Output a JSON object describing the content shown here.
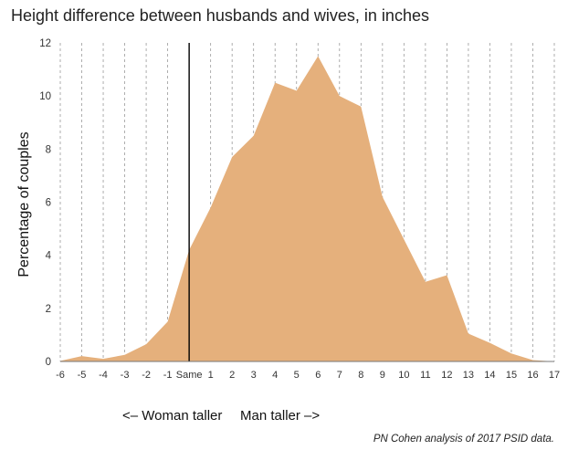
{
  "chart_data": {
    "type": "area",
    "title": "Height difference between husbands and wives, in inches",
    "xlabel": "",
    "ylabel": "Percentage of couples",
    "x": [
      -6,
      -5,
      -4,
      -3,
      -2,
      -1,
      0,
      1,
      2,
      3,
      4,
      5,
      6,
      7,
      8,
      9,
      10,
      11,
      12,
      13,
      14,
      15,
      16,
      17
    ],
    "x_tick_labels": [
      "-6",
      "-5",
      "-4",
      "-3",
      "-2",
      "-1",
      "Same",
      "1",
      "2",
      "3",
      "4",
      "5",
      "6",
      "7",
      "8",
      "9",
      "10",
      "11",
      "12",
      "13",
      "14",
      "15",
      "16",
      "17"
    ],
    "values": [
      0.02,
      0.2,
      0.1,
      0.25,
      0.65,
      1.5,
      4.2,
      5.8,
      7.7,
      8.5,
      10.5,
      10.2,
      11.5,
      10.0,
      9.6,
      6.2,
      4.6,
      3.0,
      3.25,
      1.05,
      0.7,
      0.3,
      0.05,
      0.0
    ],
    "ylim": [
      0,
      12
    ],
    "y_ticks": [
      0,
      2,
      4,
      6,
      8,
      10,
      12
    ],
    "reference_line_x": 0,
    "grid": "vertical dashed",
    "fill_color": "#e5b07c",
    "direction_labels": {
      "left": "<– Woman taller",
      "right": "Man taller –>"
    },
    "source_note": "PN Cohen analysis of 2017 PSID data."
  }
}
